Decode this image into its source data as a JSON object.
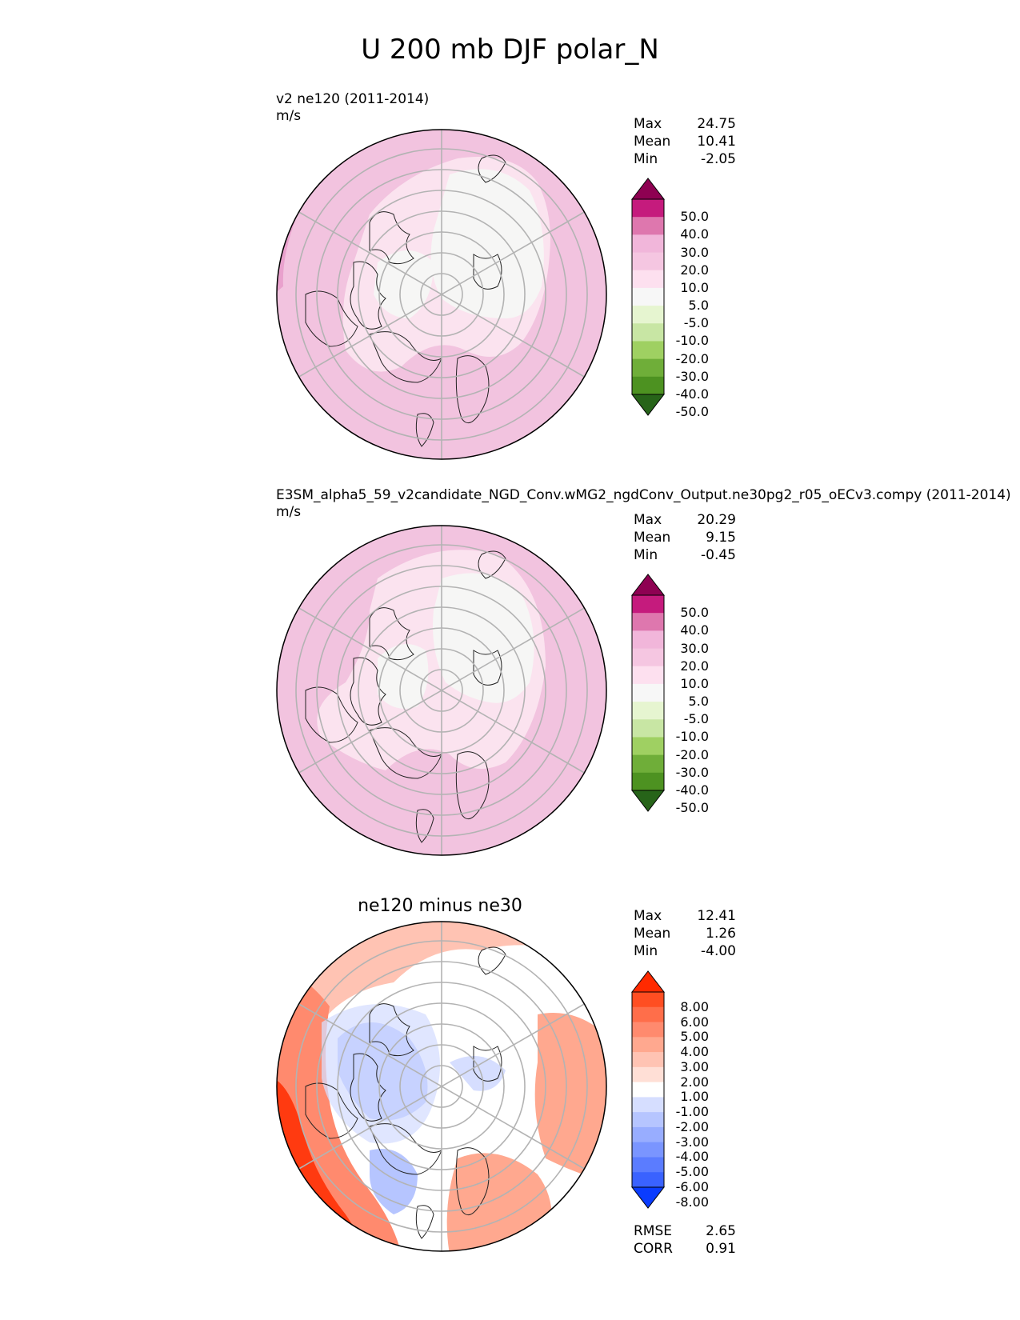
{
  "figure": {
    "title": "U 200 mb DJF polar_N"
  },
  "panels": [
    {
      "name": "test",
      "title": "v2 ne120 (2011-2014)",
      "units": "m/s",
      "stats": {
        "max_label": "Max",
        "max": "24.75",
        "mean_label": "Mean",
        "mean": "10.41",
        "min_label": "Min",
        "min": "-2.05"
      },
      "colorbar_labels": [
        "50.0",
        "40.0",
        "30.0",
        "20.0",
        "10.0",
        "5.0",
        "-5.0",
        "-10.0",
        "-20.0",
        "-30.0",
        "-40.0",
        "-50.0"
      ],
      "colorbar_colors": [
        "#8e0152",
        "#c51b7d",
        "#de77ae",
        "#f1b6da",
        "#f5c6e1",
        "#fde0ef",
        "#f7f7f7",
        "#e6f5d0",
        "#c8e6a4",
        "#9fd062",
        "#6fae39",
        "#4d9221",
        "#276419"
      ],
      "base_color": "#f2c3df",
      "field_colors": {
        "high": "#e9a1cd",
        "mid": "#f2c3df",
        "low": "#fbe3ef",
        "zero": "#f6f6f5"
      }
    },
    {
      "name": "reference",
      "title": "E3SM_alpha5_59_v2candidate_NGD_Conv.wMG2_ngdConv_Output.ne30pg2_r05_oECv3.compy (2011-2014)",
      "units": "m/s",
      "stats": {
        "max_label": "Max",
        "max": "20.29",
        "mean_label": "Mean",
        "mean": "9.15",
        "min_label": "Min",
        "min": "-0.45"
      },
      "colorbar_labels": [
        "50.0",
        "40.0",
        "30.0",
        "20.0",
        "10.0",
        "5.0",
        "-5.0",
        "-10.0",
        "-20.0",
        "-30.0",
        "-40.0",
        "-50.0"
      ],
      "colorbar_colors": [
        "#8e0152",
        "#c51b7d",
        "#de77ae",
        "#f1b6da",
        "#f5c6e1",
        "#fde0ef",
        "#f7f7f7",
        "#e6f5d0",
        "#c8e6a4",
        "#9fd062",
        "#6fae39",
        "#4d9221",
        "#276419"
      ],
      "base_color": "#f2c3df",
      "field_colors": {
        "high": "#e9a1cd",
        "mid": "#f2c3df",
        "low": "#fbe3ef",
        "zero": "#f6f6f5"
      }
    },
    {
      "name": "difference",
      "title": "ne120 minus ne30",
      "stats": {
        "max_label": "Max",
        "max": "12.41",
        "mean_label": "Mean",
        "mean": "1.26",
        "min_label": "Min",
        "min": "-4.00"
      },
      "metrics": {
        "rmse_label": "RMSE",
        "rmse": "2.65",
        "corr_label": "CORR",
        "corr": "0.91"
      },
      "colorbar_labels": [
        "8.00",
        "6.00",
        "5.00",
        "4.00",
        "3.00",
        "2.00",
        "1.00",
        "-1.00",
        "-2.00",
        "-3.00",
        "-4.00",
        "-5.00",
        "-6.00",
        "-8.00"
      ],
      "colorbar_colors": [
        "#ff2a00",
        "#ff4e22",
        "#ff6e4a",
        "#ff8a6e",
        "#ffa88f",
        "#ffc3b3",
        "#ffdfd6",
        "#ffffff",
        "#d6deff",
        "#b6c5ff",
        "#98adff",
        "#7a95ff",
        "#5b7cff",
        "#3a62ff",
        "#0a3cff"
      ],
      "base_color": "#ffffff",
      "field_colors": {
        "strong_pos": "#ff3a10",
        "pos": "#ff8a6e",
        "weak_pos": "#ffc3b3",
        "weak_neg": "#d6deff",
        "neg": "#9ab0ff"
      }
    }
  ]
}
